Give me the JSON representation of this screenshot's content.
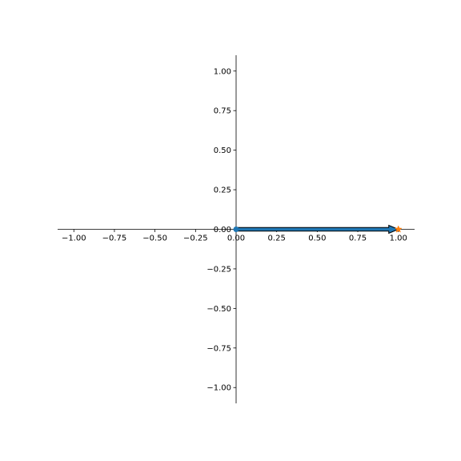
{
  "chart_data": {
    "type": "line",
    "title": "",
    "xlabel": "",
    "ylabel": "",
    "xlim": [
      -1.1,
      1.1
    ],
    "ylim": [
      -1.1,
      1.1
    ],
    "grid": false,
    "spines": "centered",
    "x_ticks": [
      -1.0,
      -0.75,
      -0.5,
      -0.25,
      0.0,
      0.25,
      0.5,
      0.75,
      1.0
    ],
    "x_tick_labels": [
      "−1.00",
      "−0.75",
      "−0.50",
      "−0.25",
      "0.00",
      "0.25",
      "0.50",
      "0.75",
      "1.00"
    ],
    "y_ticks": [
      1.0,
      0.75,
      0.5,
      0.25,
      0.0,
      -0.25,
      -0.5,
      -0.75,
      -1.0
    ],
    "y_tick_labels": [
      "1.00",
      "0.75",
      "0.50",
      "0.25",
      "0.00",
      "−0.25",
      "−0.50",
      "−0.75",
      "−1.00"
    ],
    "arrow": {
      "from": [
        0,
        0
      ],
      "to": [
        1.0,
        0
      ],
      "color": "#1f77b4",
      "edge_color": "#000000"
    },
    "start_point": {
      "x": 0,
      "y": 0,
      "color": "#1f77b4"
    },
    "end_point": {
      "x": 1.0,
      "y": 0,
      "color": "#ff7f0e",
      "marker": "star"
    }
  }
}
